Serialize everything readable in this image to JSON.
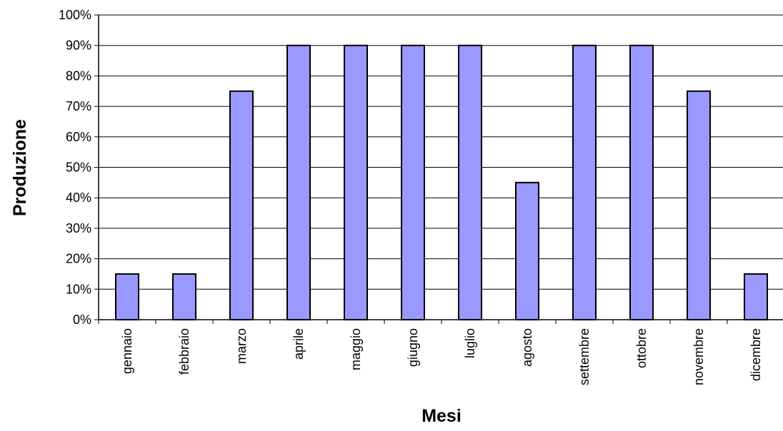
{
  "chart_data": {
    "type": "bar",
    "title": "",
    "xlabel": "Mesi",
    "ylabel": "Produzione",
    "categories": [
      "gennaio",
      "febbraio",
      "marzo",
      "aprile",
      "maggio",
      "giugno",
      "luglio",
      "agosto",
      "settembre",
      "ottobre",
      "novembre",
      "dicembre"
    ],
    "values": [
      15,
      15,
      75,
      90,
      90,
      90,
      90,
      45,
      90,
      90,
      75,
      15
    ],
    "unit": "%",
    "ylim": [
      0,
      100
    ],
    "yticks": [
      "0%",
      "10%",
      "20%",
      "30%",
      "40%",
      "50%",
      "60%",
      "70%",
      "80%",
      "90%",
      "100%"
    ],
    "grid": true,
    "bar_color": "#9999ff",
    "legend": "none"
  }
}
